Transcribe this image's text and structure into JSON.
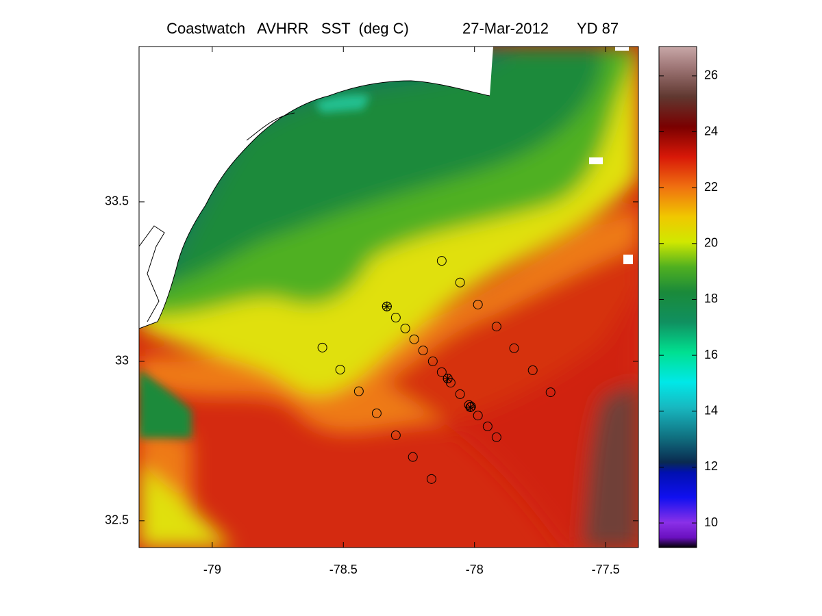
{
  "chart_data": {
    "type": "map",
    "title": "Coastwatch   AVHRR   SST  (deg C)",
    "date": "27-Mar-2012",
    "yearday": "YD 87",
    "xlim": [
      -79.279,
      -77.375
    ],
    "ylim": [
      32.416,
      33.987
    ],
    "xticks": [
      -79,
      -78.5,
      -78,
      -77.5
    ],
    "yticks": [
      32.5,
      33,
      33.5
    ],
    "grid_lon": [
      -79,
      -78.5,
      -78
    ],
    "grid_lat": [
      33.5
    ],
    "colorbar": {
      "lim": [
        9.12,
        27.05
      ],
      "ticks": [
        10,
        12,
        14,
        16,
        18,
        20,
        22,
        24,
        26
      ]
    },
    "stations": {
      "lon": [
        -78.125,
        -78.055,
        -77.987,
        -77.916,
        -77.849,
        -77.778,
        -77.71,
        -78.334,
        -78.3,
        -78.264,
        -78.23,
        -78.196,
        -78.159,
        -78.125,
        -78.091,
        -78.102,
        -78.055,
        -78.021,
        -78.013,
        -77.987,
        -77.95,
        -77.916,
        -78.58,
        -78.512,
        -78.441,
        -78.373,
        -78.3,
        -78.235,
        -78.164
      ],
      "lat": [
        33.315,
        33.247,
        33.178,
        33.109,
        33.041,
        32.972,
        32.903,
        33.172,
        33.137,
        33.103,
        33.069,
        33.034,
        33.0,
        32.966,
        32.933,
        32.946,
        32.897,
        32.863,
        32.858,
        32.83,
        32.796,
        32.762,
        33.043,
        32.974,
        32.906,
        32.837,
        32.768,
        32.7,
        32.631
      ]
    },
    "markers": {
      "lon": [
        -78.334,
        -78.102,
        -78.016
      ],
      "lat": [
        33.172,
        32.946,
        32.856
      ]
    }
  }
}
